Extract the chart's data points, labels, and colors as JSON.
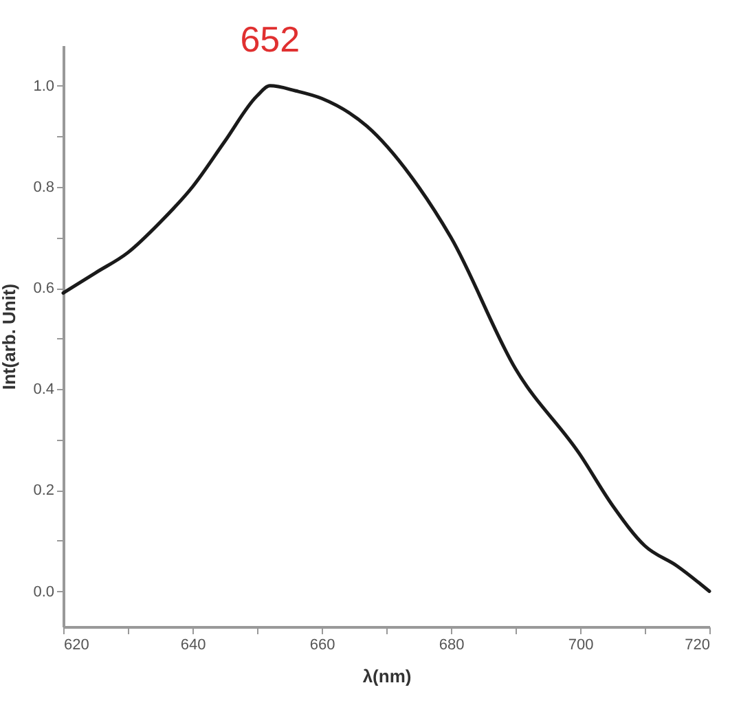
{
  "chart_data": {
    "type": "line",
    "xlabel": "λ(nm)",
    "ylabel": "Int(arb. Unit)",
    "x": [
      620,
      625,
      630,
      635,
      640,
      645,
      650,
      652,
      656,
      660,
      667,
      675,
      680,
      690,
      700,
      705,
      710,
      715,
      720
    ],
    "series": [
      {
        "color": "#1a1a1a",
        "values": [
          0.59,
          0.63,
          0.67,
          0.73,
          0.8,
          0.89,
          0.98,
          1.0,
          0.99,
          0.975,
          0.92,
          0.8,
          0.7,
          0.44,
          0.27,
          0.17,
          0.09,
          0.05,
          0.0
        ]
      }
    ],
    "xlim": [
      620,
      720
    ],
    "ylim": [
      -0.07,
      1.08
    ],
    "xticks": [
      620,
      {
        "value": 630,
        "label": null
      },
      640,
      {
        "value": 650,
        "label": null
      },
      660,
      {
        "value": 670,
        "label": null
      },
      680,
      {
        "value": 690,
        "label": null
      },
      700,
      {
        "value": 710,
        "label": null
      },
      720
    ],
    "yticks": [
      {
        "value": 0,
        "label": "0.0"
      },
      {
        "value": 0.1,
        "label": null
      },
      0.2,
      {
        "value": 0.3,
        "label": null
      },
      0.4,
      {
        "value": 0.5,
        "label": null
      },
      0.6,
      {
        "value": 0.7,
        "label": null
      },
      0.8,
      {
        "value": 0.9,
        "label": null
      },
      {
        "value": 1,
        "label": "1.0"
      }
    ],
    "annotations": [
      {
        "text": "652",
        "x": 652,
        "y": 1.0
      }
    ],
    "grid": false,
    "marker": "none",
    "line_style": "solid"
  }
}
